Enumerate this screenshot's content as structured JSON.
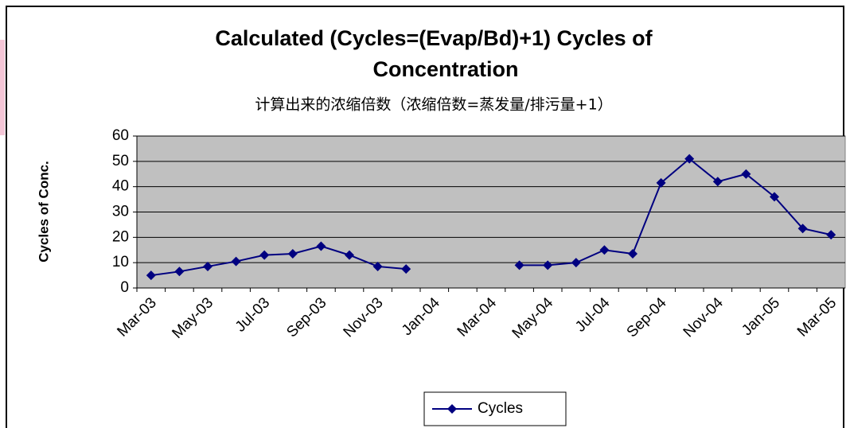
{
  "chart_data": {
    "type": "line",
    "title": [
      "Calculated (Cycles=(Evap/Bd)+1) Cycles of",
      "Concentration"
    ],
    "subtitle": "计算出来的浓缩倍数（浓缩倍数=蒸发量/排污量+1）",
    "ylabel": "Cycles of Conc.",
    "categories": [
      "Mar-03",
      null,
      "May-03",
      null,
      "Jul-03",
      null,
      "Sep-03",
      null,
      "Nov-03",
      null,
      "Jan-04",
      null,
      "Mar-04",
      null,
      "May-04",
      null,
      "Jul-04",
      null,
      "Sep-04",
      null,
      "Nov-04",
      null,
      "Jan-05",
      null,
      "Mar-05"
    ],
    "series": [
      {
        "name": "Cycles",
        "color": "#000080",
        "values": [
          5,
          6.5,
          8.5,
          10.5,
          13,
          13.5,
          16.5,
          13,
          8.5,
          7.5,
          null,
          null,
          null,
          9,
          9,
          10,
          15,
          13.5,
          41.5,
          51,
          42,
          45,
          36,
          23.5,
          21
        ]
      }
    ],
    "ylim": [
      0,
      60
    ],
    "yticks": [
      0,
      10,
      20,
      30,
      40,
      50,
      60
    ],
    "grid": true,
    "plot_background": "#c0c0c0",
    "legend": "bottom"
  }
}
